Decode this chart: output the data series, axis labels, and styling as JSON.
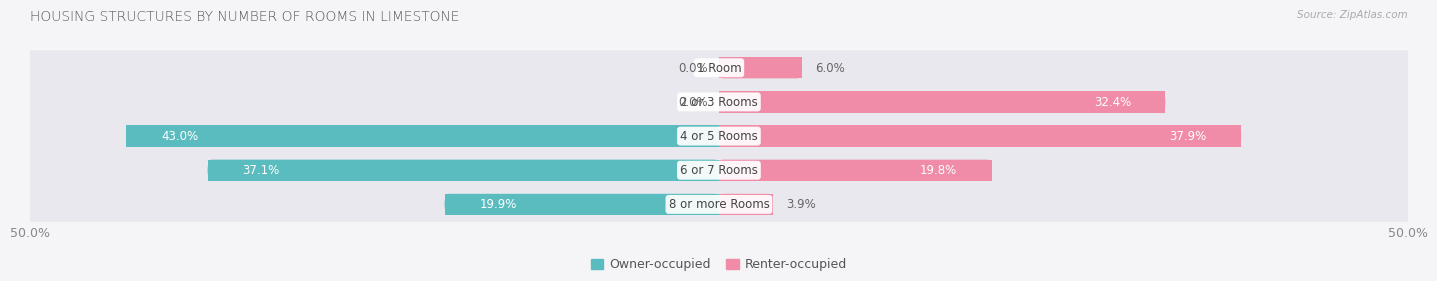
{
  "title": "HOUSING STRUCTURES BY NUMBER OF ROOMS IN LIMESTONE",
  "source": "Source: ZipAtlas.com",
  "categories": [
    "1 Room",
    "2 or 3 Rooms",
    "4 or 5 Rooms",
    "6 or 7 Rooms",
    "8 or more Rooms"
  ],
  "owner_values": [
    0.0,
    0.0,
    43.0,
    37.1,
    19.9
  ],
  "renter_values": [
    6.0,
    32.4,
    37.9,
    19.8,
    3.9
  ],
  "owner_color": "#5bbcbf",
  "renter_color": "#f08ca8",
  "xlim": [
    -50,
    50
  ],
  "xticklabels": [
    "50.0%",
    "50.0%"
  ],
  "owner_label": "Owner-occupied",
  "renter_label": "Renter-occupied",
  "title_fontsize": 10,
  "label_fontsize": 8.5,
  "tick_fontsize": 9,
  "background_color": "#f5f5f7",
  "bar_height": 0.62,
  "row_bg_color": "#e8e8ee"
}
